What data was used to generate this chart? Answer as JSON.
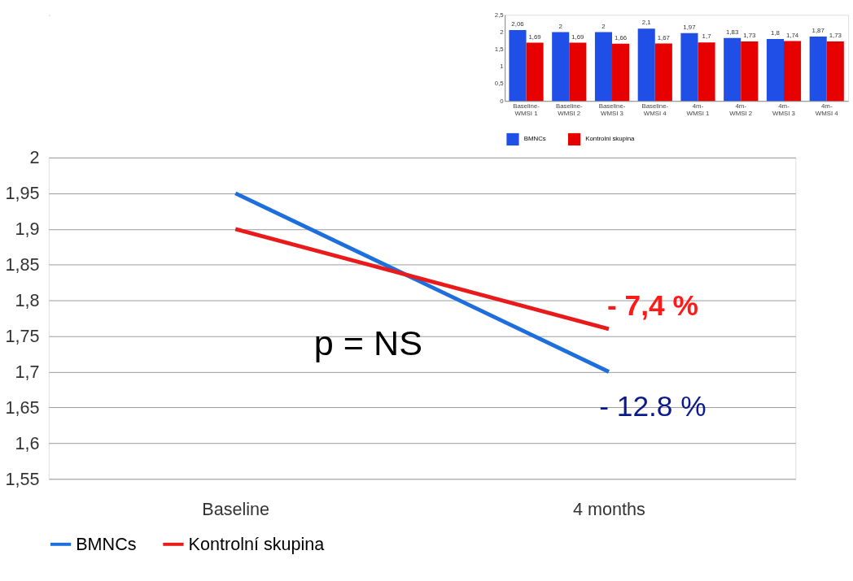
{
  "chart_data": [
    {
      "type": "line",
      "categories": [
        "Baseline",
        "4 months"
      ],
      "series": [
        {
          "name": "BMNCs",
          "color": "#1e6fdc",
          "values": [
            1.95,
            1.7
          ]
        },
        {
          "name": "Kontrolní skupina",
          "color": "#e81a1a",
          "values": [
            1.9,
            1.76
          ]
        }
      ],
      "ylim": [
        1.55,
        2
      ],
      "yticks": [
        {
          "value": 1.55,
          "label": "1,55"
        },
        {
          "value": 1.6,
          "label": "1,6"
        },
        {
          "value": 1.65,
          "label": "1,65"
        },
        {
          "value": 1.7,
          "label": "1,7"
        },
        {
          "value": 1.75,
          "label": "1,75"
        },
        {
          "value": 1.8,
          "label": "1,8"
        },
        {
          "value": 1.85,
          "label": "1,85"
        },
        {
          "value": 1.9,
          "label": "1,9"
        },
        {
          "value": 1.95,
          "label": "1,95"
        },
        {
          "value": 2,
          "label": "2"
        }
      ],
      "grid": "y",
      "legend": "bottom",
      "marker": "none",
      "line_style": "solid",
      "annotations": [
        "p = NS",
        {
          "text": "- 7,4 %",
          "x": "4 months",
          "y": 1.76
        },
        {
          "text": "- 12.8 %",
          "x": "4 months",
          "y": 1.7
        }
      ]
    },
    {
      "type": "bar",
      "categories": [
        "Baseline-WMSI 1",
        "Baseline-WMSI 2",
        "Baseline-WMSI 3",
        "Baseline-WMSI 4",
        "4m-WMSI 1",
        "4m-WMSI 2",
        "4m-WMSI 3",
        "4m-WMSI 4"
      ],
      "series": [
        {
          "name": "BMNCs",
          "color": "#1f4fe6",
          "values": [
            2.06,
            2,
            2,
            2.1,
            1.97,
            1.83,
            1.8,
            1.87
          ],
          "value_labels": [
            "2,06",
            "2",
            "2",
            "2,1",
            "1,97",
            "1,83",
            "1,8",
            "1,87"
          ]
        },
        {
          "name": "Kontrolni skupina",
          "color": "#e60000",
          "values": [
            1.69,
            1.69,
            1.66,
            1.67,
            1.7,
            1.73,
            1.74,
            1.73
          ],
          "value_labels": [
            "1,69",
            "1,69",
            "1,66",
            "1,67",
            "1,7",
            "1,73",
            "1,74",
            "1,73"
          ]
        }
      ],
      "ylim": [
        0,
        2.5
      ],
      "yticks": [
        0,
        {
          "value": 0.5,
          "label": "0,5"
        },
        1,
        {
          "value": 1.5,
          "label": "1,5"
        },
        2,
        {
          "value": 2.5,
          "label": "2,5"
        }
      ],
      "legend": "bottom",
      "grid": false
    }
  ]
}
